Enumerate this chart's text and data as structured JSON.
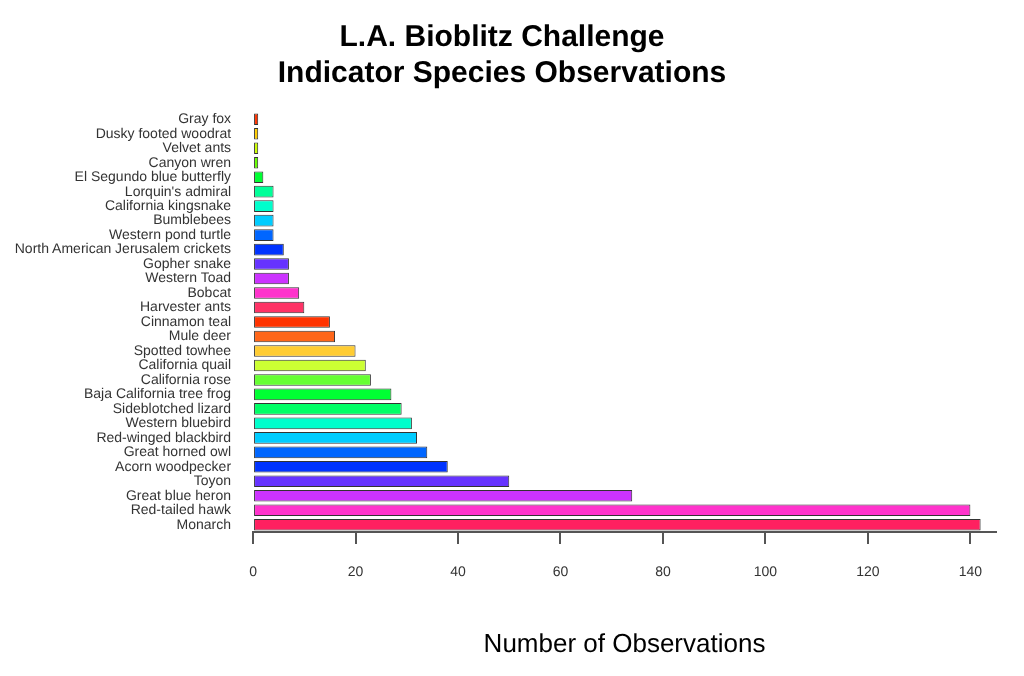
{
  "chart_data": {
    "type": "bar",
    "orientation": "horizontal",
    "title": "L.A. Bioblitz Challenge\nIndicator Species Observations",
    "xlabel": "Number of Observations",
    "categories": [
      "Gray fox",
      "Dusky footed woodrat",
      "Velvet ants",
      "Canyon wren",
      "El Segundo blue butterfly",
      "Lorquin's admiral",
      "California kingsnake",
      "Bumblebees",
      "Western pond turtle",
      "North American Jerusalem crickets",
      "Gopher snake",
      "Western Toad",
      "Bobcat",
      "Harvester ants",
      "Cinnamon teal",
      "Mule deer",
      "Spotted towhee",
      "California quail",
      "California rose",
      "Baja California tree frog",
      "Sideblotched lizard",
      "Western bluebird",
      "Red-winged blackbird",
      "Great horned owl",
      "Acorn woodpecker",
      "Toyon",
      "Great blue heron",
      "Red-tailed hawk",
      "Monarch"
    ],
    "values": [
      1,
      1,
      1,
      1,
      2,
      4,
      4,
      4,
      4,
      6,
      7,
      7,
      9,
      10,
      15,
      16,
      20,
      22,
      23,
      27,
      29,
      31,
      32,
      34,
      38,
      50,
      74,
      140,
      142
    ],
    "colors": [
      "#ff3300",
      "#ffcc00",
      "#ccff00",
      "#66ff00",
      "#00ff33",
      "#00ff99",
      "#00ffcc",
      "#00ccff",
      "#0066ff",
      "#0033ff",
      "#6633ff",
      "#cc33ff",
      "#ff33cc",
      "#ff3366",
      "#ff3300",
      "#ff6619",
      "#ffcc33",
      "#ccff33",
      "#66ff33",
      "#00ff33",
      "#00ff66",
      "#00ffcc",
      "#00ccff",
      "#0066ff",
      "#0033ff",
      "#6633ff",
      "#cc33ff",
      "#ff33cc",
      "#ff2060"
    ],
    "xlim": [
      0,
      145
    ],
    "xticks": [
      0,
      20,
      40,
      60,
      80,
      100,
      120,
      140
    ],
    "grid": false,
    "legend": false
  }
}
